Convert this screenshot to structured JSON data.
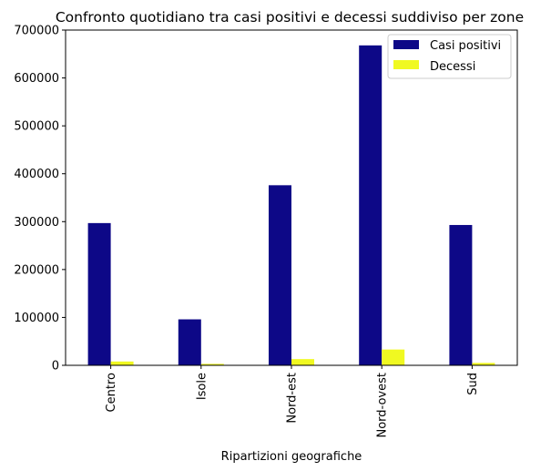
{
  "chart_data": {
    "type": "bar",
    "title": "Confronto quotidiano tra casi positivi e decessi suddiviso per zone",
    "xlabel": "Ripartizioni geografiche",
    "ylabel": "",
    "categories": [
      "Centro",
      "Isole",
      "Nord-est",
      "Nord-ovest",
      "Sud"
    ],
    "series": [
      {
        "name": "Casi positivi",
        "color": "#0d0887",
        "values": [
          297000,
          96000,
          376000,
          668000,
          293000
        ]
      },
      {
        "name": "Decessi",
        "color": "#f0f921",
        "values": [
          8000,
          3000,
          13000,
          33000,
          5000
        ]
      }
    ],
    "ylim": [
      0,
      700000
    ],
    "yticks": [
      "0",
      "100000",
      "200000",
      "300000",
      "400000",
      "500000",
      "600000",
      "700000"
    ],
    "legend_position": "top-right",
    "grid": false
  }
}
